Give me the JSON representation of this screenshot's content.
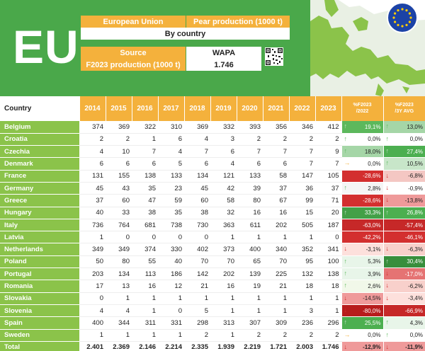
{
  "header": {
    "logo": "EU",
    "region": "European Union",
    "metric": "Pear production (1000 t)",
    "breakdown": "By country",
    "source_label": "Source",
    "source_value": "WAPA",
    "forecast_label": "F2023 production (1000 t)",
    "forecast_value": "1.746"
  },
  "table": {
    "country_header": "Country",
    "years": [
      "2014",
      "2015",
      "2016",
      "2017",
      "2018",
      "2019",
      "2020",
      "2021",
      "2022",
      "2023"
    ],
    "pct_headers": [
      [
        "%F2023",
        "/2022"
      ],
      [
        "%F2023",
        "/3Y AVG"
      ]
    ],
    "rows": [
      {
        "country": "Belgium",
        "values": [
          "374",
          "369",
          "322",
          "310",
          "369",
          "332",
          "393",
          "356",
          "346",
          "412"
        ],
        "p1": "19,1%",
        "p2": "13,0%",
        "c1": "#5cb85c",
        "c2": "#a5d6a7",
        "a1": "up",
        "a2": "up"
      },
      {
        "country": "Croatia",
        "values": [
          "2",
          "2",
          "1",
          "6",
          "4",
          "3",
          "2",
          "2",
          "2",
          "2"
        ],
        "p1": "0,0%",
        "p2": "0,0%",
        "c1": "#fff",
        "c2": "#fff",
        "a1": "up",
        "a2": "up"
      },
      {
        "country": "Czechia",
        "values": [
          "4",
          "10",
          "7",
          "4",
          "7",
          "6",
          "7",
          "7",
          "7",
          "9"
        ],
        "p1": "18,0%",
        "p2": "27,4%",
        "c1": "#a5d6a7",
        "c2": "#4caf50",
        "a1": "up",
        "a2": "up"
      },
      {
        "country": "Denmark",
        "values": [
          "6",
          "6",
          "6",
          "5",
          "6",
          "4",
          "6",
          "6",
          "7",
          "7"
        ],
        "p1": "0,0%",
        "p2": "10,5%",
        "c1": "#fff",
        "c2": "#c8e6c9",
        "a1": "right",
        "a2": "up"
      },
      {
        "country": "France",
        "values": [
          "131",
          "155",
          "138",
          "133",
          "134",
          "121",
          "133",
          "58",
          "147",
          "105"
        ],
        "p1": "-28,6%",
        "p2": "-6,8%",
        "c1": "#d32f2f",
        "c2": "#f4c7c3",
        "a1": "down",
        "a2": "down"
      },
      {
        "country": "Germany",
        "values": [
          "45",
          "43",
          "35",
          "23",
          "45",
          "42",
          "39",
          "37",
          "36",
          "37"
        ],
        "p1": "2,8%",
        "p2": "-0,9%",
        "c1": "#f5f5f5",
        "c2": "#fff",
        "a1": "up",
        "a2": "down"
      },
      {
        "country": "Greece",
        "values": [
          "37",
          "60",
          "47",
          "59",
          "60",
          "58",
          "80",
          "67",
          "99",
          "71"
        ],
        "p1": "-28,6%",
        "p2": "-13,8%",
        "c1": "#d32f2f",
        "c2": "#ef9a9a",
        "a1": "down",
        "a2": "down"
      },
      {
        "country": "Hungary",
        "values": [
          "40",
          "33",
          "38",
          "35",
          "38",
          "32",
          "16",
          "16",
          "15",
          "20"
        ],
        "p1": "33,3%",
        "p2": "26,8%",
        "c1": "#43a047",
        "c2": "#4caf50",
        "a1": "up",
        "a2": "up"
      },
      {
        "country": "Italy",
        "values": [
          "736",
          "764",
          "681",
          "738",
          "730",
          "363",
          "611",
          "202",
          "505",
          "187"
        ],
        "p1": "-63,0%",
        "p2": "-57,4%",
        "c1": "#c62828",
        "c2": "#c62828",
        "a1": "down",
        "a2": "down"
      },
      {
        "country": "Latvia",
        "values": [
          "1",
          "0",
          "0",
          "0",
          "0",
          "1",
          "1",
          "1",
          "1",
          "0"
        ],
        "p1": "-42,2%",
        "p2": "-46,1%",
        "c1": "#d32f2f",
        "c2": "#d32f2f",
        "a1": "down",
        "a2": "down"
      },
      {
        "country": "Netherlands",
        "values": [
          "349",
          "349",
          "374",
          "330",
          "402",
          "373",
          "400",
          "340",
          "352",
          "341"
        ],
        "p1": "-3,1%",
        "p2": "-6,3%",
        "c1": "#fde0dc",
        "c2": "#f8d0cb",
        "a1": "down",
        "a2": "down"
      },
      {
        "country": "Poland",
        "values": [
          "50",
          "80",
          "55",
          "40",
          "70",
          "70",
          "65",
          "70",
          "95",
          "100"
        ],
        "p1": "5,3%",
        "p2": "30,4%",
        "c1": "#e8f5e9",
        "c2": "#388e3c",
        "a1": "up",
        "a2": "up"
      },
      {
        "country": "Portugal",
        "values": [
          "203",
          "134",
          "113",
          "186",
          "142",
          "202",
          "139",
          "225",
          "132",
          "138"
        ],
        "p1": "3,9%",
        "p2": "-17,0%",
        "c1": "#e8f5e9",
        "c2": "#e57373",
        "a1": "up",
        "a2": "down"
      },
      {
        "country": "Romania",
        "values": [
          "17",
          "13",
          "16",
          "12",
          "21",
          "16",
          "19",
          "21",
          "18",
          "18"
        ],
        "p1": "2,6%",
        "p2": "-6,2%",
        "c1": "#f1f8e9",
        "c2": "#f8d0cb",
        "a1": "up",
        "a2": "down"
      },
      {
        "country": "Slovakia",
        "values": [
          "0",
          "1",
          "1",
          "1",
          "1",
          "1",
          "1",
          "1",
          "1",
          "1"
        ],
        "p1": "-14,5%",
        "p2": "-3,4%",
        "c1": "#ef9a9a",
        "c2": "#fde0dc",
        "a1": "down",
        "a2": "down"
      },
      {
        "country": "Slovenia",
        "values": [
          "4",
          "4",
          "1",
          "0",
          "5",
          "1",
          "1",
          "1",
          "3",
          "1"
        ],
        "p1": "-80,0%",
        "p2": "-66,9%",
        "c1": "#b71c1c",
        "c2": "#c62828",
        "a1": "down",
        "a2": "down"
      },
      {
        "country": "Spain",
        "values": [
          "400",
          "344",
          "311",
          "331",
          "298",
          "313",
          "307",
          "309",
          "236",
          "296"
        ],
        "p1": "25,5%",
        "p2": "4,3%",
        "c1": "#4caf50",
        "c2": "#e8f5e9",
        "a1": "up",
        "a2": "up"
      },
      {
        "country": "Sweden",
        "values": [
          "1",
          "1",
          "1",
          "1",
          "2",
          "1",
          "2",
          "2",
          "2",
          "2"
        ],
        "p1": "0,0%",
        "p2": "0,0%",
        "c1": "#fff",
        "c2": "#fff",
        "a1": "right",
        "a2": "up"
      }
    ],
    "total": {
      "country": "Total",
      "values": [
        "2.401",
        "2.369",
        "2.146",
        "2.214",
        "2.335",
        "1.939",
        "2.219",
        "1.721",
        "2.003",
        "1.746"
      ],
      "p1": "-12,9%",
      "p2": "-11,9%",
      "c1": "#ef9a9a",
      "c2": "#ef9a9a",
      "a1": "down",
      "a2": "down"
    }
  },
  "colors": {
    "green": "#4aa84a",
    "light_green": "#8bc34a",
    "orange": "#f4b13c",
    "arrow_up": "#5cb85c",
    "arrow_down": "#d32f2f",
    "arrow_right": "#f4b13c"
  }
}
